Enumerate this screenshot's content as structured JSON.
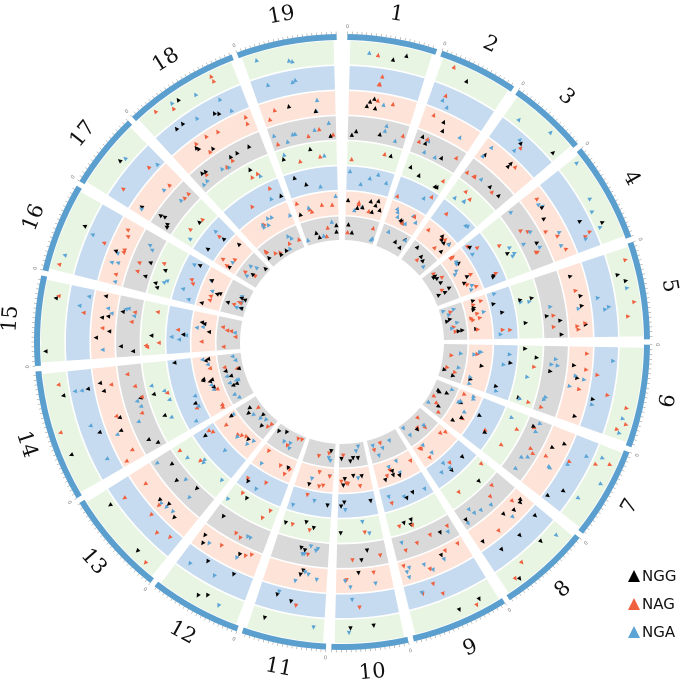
{
  "chart_data": {
    "type": "circos",
    "title": "",
    "layout": {
      "center": [
        342,
        342
      ],
      "outer_band_r": [
        302,
        308
      ],
      "track_inner_r": 102,
      "track_width": 23.5,
      "track_gap": 1.6
    },
    "chromosomes": [
      {
        "name": "1",
        "start_deg": 1,
        "end_deg": 18
      },
      {
        "name": "2",
        "start_deg": 19,
        "end_deg": 34
      },
      {
        "name": "3",
        "start_deg": 35,
        "end_deg": 50
      },
      {
        "name": "4",
        "start_deg": 51,
        "end_deg": 70
      },
      {
        "name": "5",
        "start_deg": 71,
        "end_deg": 89.5
      },
      {
        "name": "6",
        "start_deg": 90.5,
        "end_deg": 110
      },
      {
        "name": "7",
        "start_deg": 111,
        "end_deg": 128.5
      },
      {
        "name": "8",
        "start_deg": 129.5,
        "end_deg": 147
      },
      {
        "name": "9",
        "start_deg": 148,
        "end_deg": 166.5
      },
      {
        "name": "10",
        "start_deg": 167.5,
        "end_deg": 182
      },
      {
        "name": "11",
        "start_deg": 183,
        "end_deg": 199
      },
      {
        "name": "12",
        "start_deg": 200,
        "end_deg": 217.5
      },
      {
        "name": "13",
        "start_deg": 218.5,
        "end_deg": 238.5
      },
      {
        "name": "14",
        "start_deg": 239.5,
        "end_deg": 264.5
      },
      {
        "name": "15",
        "start_deg": 265.5,
        "end_deg": 282.5
      },
      {
        "name": "16",
        "start_deg": 283.5,
        "end_deg": 300.5
      },
      {
        "name": "17",
        "start_deg": 301.5,
        "end_deg": 316
      },
      {
        "name": "18",
        "start_deg": 317,
        "end_deg": 339
      },
      {
        "name": "19",
        "start_deg": 340,
        "end_deg": 359
      }
    ],
    "tick_labels": [
      "0",
      "25"
    ],
    "tracks": [
      {
        "name": "track-1",
        "fill": "#d9d9d9",
        "density": 9
      },
      {
        "name": "track-2",
        "fill": "#fde3d8",
        "density": 10
      },
      {
        "name": "track-3",
        "fill": "#c6dbef",
        "density": 5
      },
      {
        "name": "track-4",
        "fill": "#e8f5e3",
        "density": 5
      },
      {
        "name": "track-5",
        "fill": "#d9d9d9",
        "density": 8
      },
      {
        "name": "track-6",
        "fill": "#fde3d8",
        "density": 8
      },
      {
        "name": "track-7",
        "fill": "#c6dbef",
        "density": 4
      },
      {
        "name": "track-8",
        "fill": "#e8f5e3",
        "density": 4
      }
    ],
    "series": [
      {
        "name": "NGG",
        "color": "#000000"
      },
      {
        "name": "NAG",
        "color": "#f0603f"
      },
      {
        "name": "NGA",
        "color": "#5ba4d6"
      }
    ],
    "outer_band_color": "#5b9fcf",
    "legend_position": "bottom-right"
  },
  "legend": {
    "items": [
      {
        "label": "NGG",
        "color": "#000000"
      },
      {
        "label": "NAG",
        "color": "#f0603f"
      },
      {
        "label": "NGA",
        "color": "#5ba4d6"
      }
    ]
  }
}
